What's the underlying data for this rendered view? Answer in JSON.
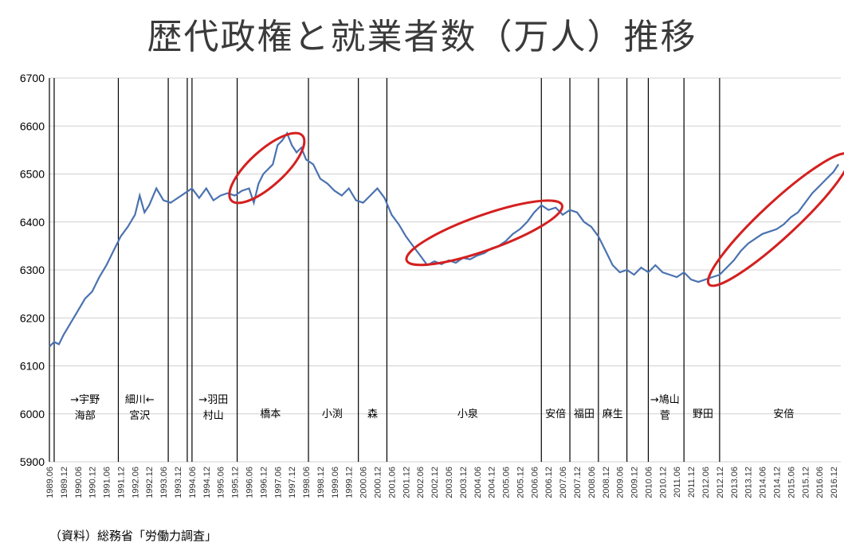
{
  "title": "歴代政権と就業者数（万人）推移",
  "source": "（資料）総務省「労働力調査」",
  "colors": {
    "line": "#4a72b0",
    "highlight": "#d42020",
    "grid": "#d0d0d0"
  },
  "chart_data": {
    "type": "line",
    "title": "歴代政権と就業者数（万人）推移",
    "xlabel": "",
    "ylabel": "",
    "ylim": [
      5900,
      6700
    ],
    "yticks": [
      5900,
      6000,
      6100,
      6200,
      6300,
      6400,
      6500,
      6600,
      6700
    ],
    "xticks": [
      "1989.06",
      "1989.12",
      "1990.06",
      "1990.12",
      "1991.06",
      "1991.12",
      "1992.06",
      "1992.12",
      "1993.06",
      "1993.12",
      "1994.06",
      "1994.12",
      "1995.06",
      "1995.12",
      "1996.06",
      "1996.12",
      "1997.06",
      "1997.12",
      "1998.06",
      "1998.12",
      "1999.06",
      "1999.12",
      "2000.06",
      "2000.12",
      "2001.06",
      "2001.12",
      "2002.06",
      "2002.12",
      "2003.06",
      "2003.12",
      "2004.06",
      "2004.12",
      "2005.06",
      "2005.12",
      "2006.06",
      "2006.12",
      "2007.06",
      "2007.12",
      "2008.06",
      "2008.12",
      "2009.06",
      "2009.12",
      "2010.06",
      "2010.12",
      "2011.06",
      "2011.12",
      "2012.06",
      "2012.12",
      "2013.06",
      "2013.12",
      "2014.06",
      "2014.12",
      "2015.06",
      "2015.12",
      "2016.06",
      "2016.12"
    ],
    "grid": true,
    "series": [
      {
        "name": "",
        "points": [
          [
            "1989.06",
            6140
          ],
          [
            "1989.08",
            6150
          ],
          [
            "1989.10",
            6145
          ],
          [
            "1989.12",
            6165
          ],
          [
            "1990.03",
            6190
          ],
          [
            "1990.06",
            6215
          ],
          [
            "1990.09",
            6240
          ],
          [
            "1990.12",
            6255
          ],
          [
            "1991.03",
            6285
          ],
          [
            "1991.06",
            6310
          ],
          [
            "1991.09",
            6340
          ],
          [
            "1991.12",
            6370
          ],
          [
            "1992.03",
            6390
          ],
          [
            "1992.06",
            6415
          ],
          [
            "1992.08",
            6455
          ],
          [
            "1992.10",
            6420
          ],
          [
            "1992.12",
            6435
          ],
          [
            "1993.03",
            6470
          ],
          [
            "1993.06",
            6445
          ],
          [
            "1993.09",
            6440
          ],
          [
            "1993.12",
            6450
          ],
          [
            "1994.03",
            6460
          ],
          [
            "1994.06",
            6470
          ],
          [
            "1994.09",
            6450
          ],
          [
            "1994.12",
            6470
          ],
          [
            "1995.03",
            6445
          ],
          [
            "1995.06",
            6455
          ],
          [
            "1995.09",
            6460
          ],
          [
            "1995.12",
            6455
          ],
          [
            "1996.03",
            6465
          ],
          [
            "1996.06",
            6470
          ],
          [
            "1996.08",
            6440
          ],
          [
            "1996.10",
            6480
          ],
          [
            "1996.12",
            6500
          ],
          [
            "1997.02",
            6510
          ],
          [
            "1997.04",
            6520
          ],
          [
            "1997.06",
            6560
          ],
          [
            "1997.08",
            6570
          ],
          [
            "1997.10",
            6585
          ],
          [
            "1997.12",
            6560
          ],
          [
            "1998.02",
            6545
          ],
          [
            "1998.04",
            6555
          ],
          [
            "1998.06",
            6530
          ],
          [
            "1998.09",
            6520
          ],
          [
            "1998.12",
            6490
          ],
          [
            "1999.03",
            6480
          ],
          [
            "1999.06",
            6465
          ],
          [
            "1999.09",
            6455
          ],
          [
            "1999.12",
            6470
          ],
          [
            "2000.03",
            6445
          ],
          [
            "2000.06",
            6440
          ],
          [
            "2000.09",
            6455
          ],
          [
            "2000.12",
            6470
          ],
          [
            "2001.03",
            6450
          ],
          [
            "2001.06",
            6415
          ],
          [
            "2001.09",
            6395
          ],
          [
            "2001.12",
            6370
          ],
          [
            "2002.03",
            6350
          ],
          [
            "2002.06",
            6330
          ],
          [
            "2002.09",
            6310
          ],
          [
            "2002.12",
            6318
          ],
          [
            "2003.03",
            6312
          ],
          [
            "2003.06",
            6320
          ],
          [
            "2003.09",
            6315
          ],
          [
            "2003.12",
            6325
          ],
          [
            "2004.03",
            6322
          ],
          [
            "2004.06",
            6330
          ],
          [
            "2004.09",
            6335
          ],
          [
            "2004.12",
            6345
          ],
          [
            "2005.03",
            6350
          ],
          [
            "2005.06",
            6360
          ],
          [
            "2005.09",
            6375
          ],
          [
            "2005.12",
            6385
          ],
          [
            "2006.03",
            6400
          ],
          [
            "2006.06",
            6420
          ],
          [
            "2006.09",
            6435
          ],
          [
            "2006.12",
            6425
          ],
          [
            "2007.03",
            6430
          ],
          [
            "2007.06",
            6415
          ],
          [
            "2007.09",
            6425
          ],
          [
            "2007.12",
            6420
          ],
          [
            "2008.03",
            6400
          ],
          [
            "2008.06",
            6390
          ],
          [
            "2008.09",
            6370
          ],
          [
            "2008.12",
            6340
          ],
          [
            "2009.03",
            6310
          ],
          [
            "2009.06",
            6295
          ],
          [
            "2009.09",
            6300
          ],
          [
            "2009.12",
            6290
          ],
          [
            "2010.03",
            6305
          ],
          [
            "2010.06",
            6295
          ],
          [
            "2010.09",
            6310
          ],
          [
            "2010.12",
            6295
          ],
          [
            "2011.03",
            6290
          ],
          [
            "2011.06",
            6285
          ],
          [
            "2011.09",
            6295
          ],
          [
            "2011.12",
            6280
          ],
          [
            "2012.03",
            6275
          ],
          [
            "2012.06",
            6280
          ],
          [
            "2012.09",
            6285
          ],
          [
            "2012.12",
            6290
          ],
          [
            "2013.03",
            6305
          ],
          [
            "2013.06",
            6320
          ],
          [
            "2013.09",
            6340
          ],
          [
            "2013.12",
            6355
          ],
          [
            "2014.03",
            6365
          ],
          [
            "2014.06",
            6375
          ],
          [
            "2014.09",
            6380
          ],
          [
            "2014.12",
            6385
          ],
          [
            "2015.03",
            6395
          ],
          [
            "2015.06",
            6410
          ],
          [
            "2015.09",
            6420
          ],
          [
            "2015.12",
            6440
          ],
          [
            "2016.03",
            6460
          ],
          [
            "2016.06",
            6475
          ],
          [
            "2016.09",
            6490
          ],
          [
            "2016.12",
            6505
          ],
          [
            "2017.02",
            6520
          ]
        ]
      }
    ],
    "cabinet_boundaries": [
      "1989.06",
      "1989.08",
      "1991.11",
      "1993.08",
      "1994.04",
      "1994.06",
      "1996.01",
      "1998.07",
      "2000.04",
      "2001.04",
      "2006.09",
      "2007.09",
      "2008.09",
      "2009.09",
      "2010.06",
      "2011.09",
      "2012.12"
    ],
    "cabinet_labels": [
      {
        "lines": [
          "→宇野",
          "海部"
        ],
        "at": "1990.09"
      },
      {
        "lines": [
          "細川←",
          "宮沢"
        ],
        "at": "1992.08"
      },
      {
        "lines": [
          "→羽田",
          "村山"
        ],
        "at": "1995.03"
      },
      {
        "lines": [
          "橋本"
        ],
        "at": "1997.03"
      },
      {
        "lines": [
          "小渕"
        ],
        "at": "1999.05"
      },
      {
        "lines": [
          "森"
        ],
        "at": "2000.10"
      },
      {
        "lines": [
          "小泉"
        ],
        "at": "2004.02"
      },
      {
        "lines": [
          "安倍"
        ],
        "at": "2007.03"
      },
      {
        "lines": [
          "福田"
        ],
        "at": "2008.03"
      },
      {
        "lines": [
          "麻生"
        ],
        "at": "2009.03"
      },
      {
        "lines": [
          "→鳩山",
          "菅"
        ],
        "at": "2011.01"
      },
      {
        "lines": [
          "野田"
        ],
        "at": "2012.05"
      },
      {
        "lines": [
          "安倍"
        ],
        "at": "2015.03"
      }
    ],
    "highlights": [
      {
        "from": "1996.01",
        "to": "1998.01",
        "note": "橋本"
      },
      {
        "from": "2002.06",
        "to": "2007.01",
        "note": "小泉"
      },
      {
        "from": "2012.12",
        "to": "2017.03",
        "note": "安倍"
      }
    ]
  }
}
